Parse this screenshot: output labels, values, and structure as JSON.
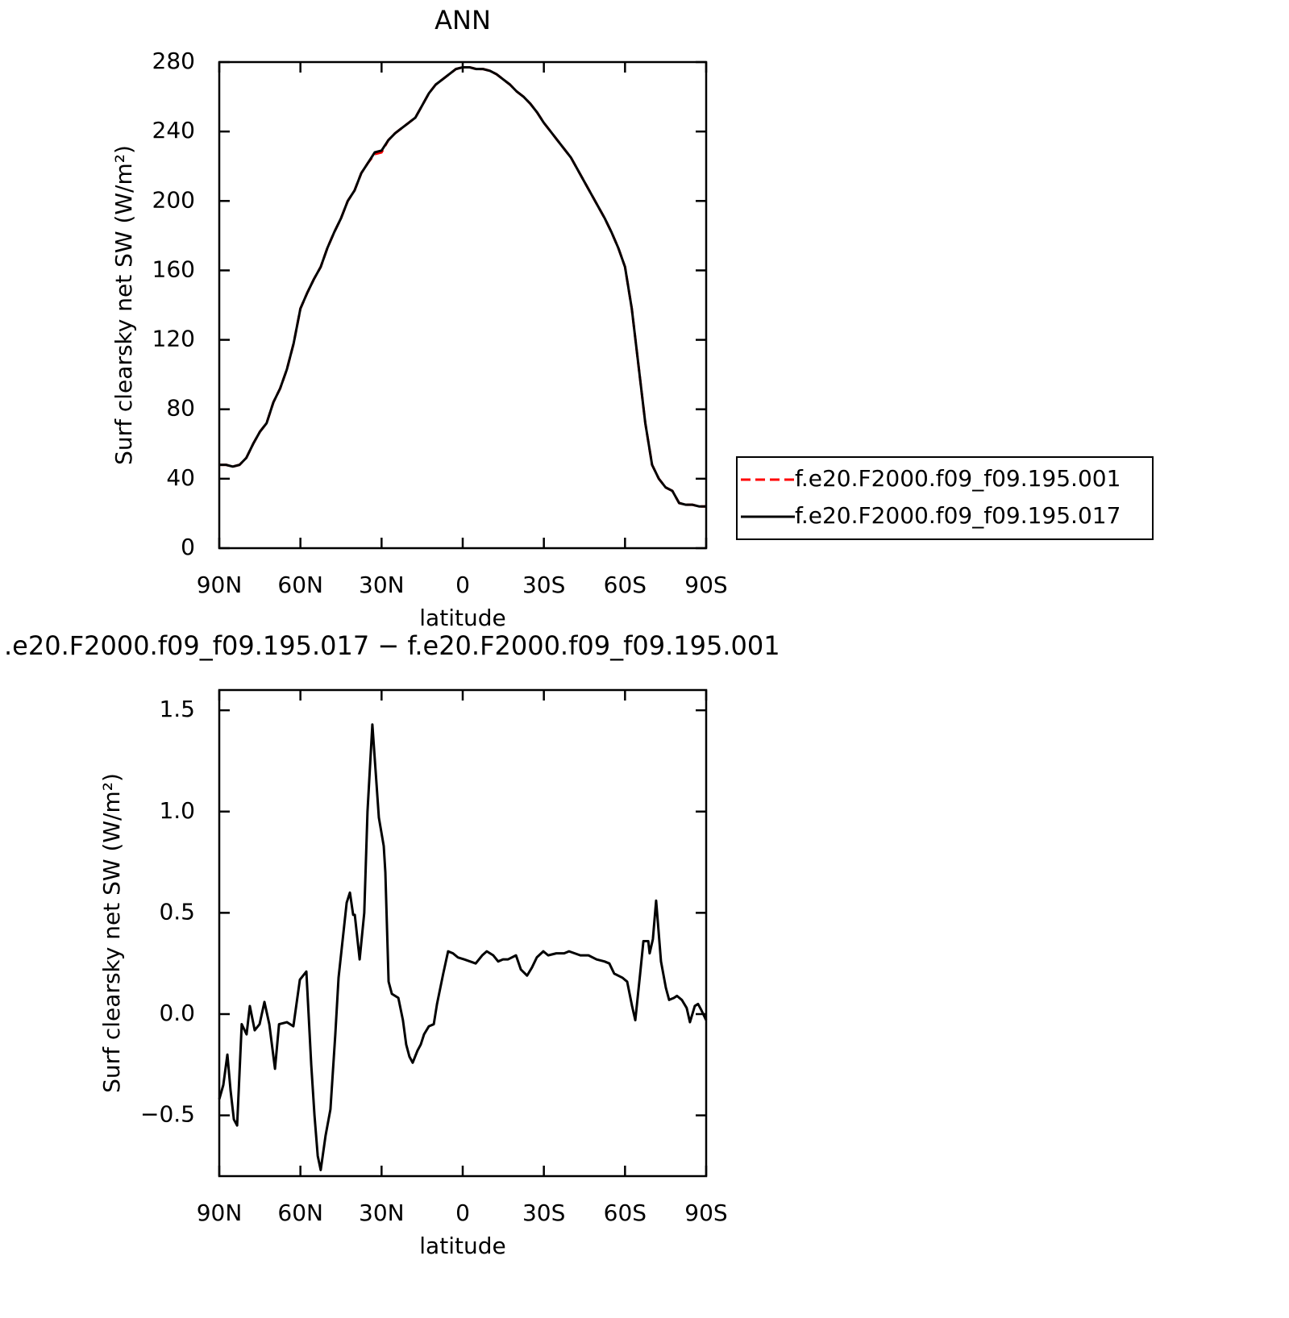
{
  "chart_data": [
    {
      "type": "line",
      "title": "ANN",
      "xlabel": "latitude",
      "ylabel": "Surf clearsky net SW (W/m²)",
      "x": [
        90,
        87.5,
        85,
        82.5,
        80,
        77.5,
        75,
        72.5,
        70,
        67.5,
        65,
        62.5,
        60,
        57.5,
        55,
        52.5,
        50,
        47.5,
        45,
        42.5,
        40,
        37.5,
        35,
        32.5,
        30,
        27.5,
        25,
        22.5,
        20,
        17.5,
        15,
        12.5,
        10,
        7.5,
        5,
        2.5,
        0,
        -2.5,
        -5,
        -7.5,
        -10,
        -12.5,
        -15,
        -17.5,
        -20,
        -22.5,
        -25,
        -27.5,
        -30,
        -32.5,
        -35,
        -37.5,
        -40,
        -42.5,
        -45,
        -47.5,
        -50,
        -52.5,
        -55,
        -57.5,
        -60,
        -62.5,
        -65,
        -67.5,
        -70,
        -72.5,
        -75,
        -77.5,
        -80,
        -82.5,
        -85,
        -87.5,
        -90
      ],
      "series": [
        {
          "name": "f.e20.F2000.f09_f09.195.001",
          "color": "#ff0000",
          "line_style": "dashed",
          "values": [
            48,
            48,
            47,
            48,
            52,
            60,
            67,
            72,
            84,
            92,
            103,
            118,
            138,
            147,
            155,
            162,
            173,
            182,
            190,
            200,
            206,
            216,
            222,
            227,
            228,
            235,
            239,
            242,
            245,
            248,
            255,
            262,
            267,
            270,
            273,
            276,
            277,
            277,
            276,
            276,
            275,
            273,
            270,
            267,
            263,
            260,
            256,
            251,
            245,
            240,
            235,
            230,
            225,
            218,
            211,
            204,
            197,
            190,
            182,
            173,
            162,
            138,
            105,
            72,
            48,
            40,
            35,
            33,
            26,
            25,
            25,
            24,
            24
          ]
        },
        {
          "name": "f.e20.F2000.f09_f09.195.017",
          "color": "#000000",
          "line_style": "solid",
          "values": [
            48,
            48,
            47,
            48,
            52,
            60,
            67,
            72,
            84,
            92,
            103,
            118,
            138,
            147,
            155,
            162,
            173,
            182,
            190,
            200,
            206,
            216,
            222,
            228,
            229,
            235,
            239,
            242,
            245,
            248,
            255,
            262,
            267,
            270,
            273,
            276,
            277,
            277,
            276,
            276,
            275,
            273,
            270,
            267,
            263,
            260,
            256,
            251,
            245,
            240,
            235,
            230,
            225,
            218,
            211,
            204,
            197,
            190,
            182,
            173,
            162,
            138,
            105,
            72,
            48,
            40,
            35,
            33,
            26,
            25,
            25,
            24,
            24
          ]
        }
      ],
      "xlim": [
        90,
        -90
      ],
      "xticks": [
        {
          "value": 90,
          "label": "90N"
        },
        {
          "value": 60,
          "label": "60N"
        },
        {
          "value": 30,
          "label": "30N"
        },
        0,
        {
          "value": -30,
          "label": "30S"
        },
        {
          "value": -60,
          "label": "60S"
        },
        {
          "value": -90,
          "label": "90S"
        }
      ],
      "ylim": [
        0,
        280
      ],
      "yticks": [
        0,
        40,
        80,
        120,
        160,
        200,
        240,
        280
      ],
      "legend": "outside-right"
    },
    {
      "type": "line",
      "title": ".e20.F2000.f09_f09.195.017 − f.e20.F2000.f09_f09.195.001",
      "xlabel": "latitude",
      "ylabel": "Surf clearsky net SW (W/m²)",
      "x": [
        90,
        88.5,
        87,
        85.8,
        84.6,
        83.4,
        81.7,
        79.9,
        78.7,
        76.9,
        75.1,
        73.3,
        71.5,
        69.4,
        67.9,
        65,
        62.6,
        60.2,
        57.8,
        56,
        54.8,
        53.6,
        52.5,
        50.7,
        48.9,
        47.1,
        45.9,
        42.9,
        41.7,
        40.5,
        39.9,
        38.1,
        36.4,
        35.2,
        33.4,
        32.2,
        31,
        29.2,
        28.6,
        27.4,
        26.2,
        23.8,
        22.1,
        20.9,
        19.7,
        18.5,
        16.7,
        15.5,
        14.3,
        12.5,
        10.7,
        9.5,
        7.2,
        5.4,
        3.6,
        1.8,
        -0.6,
        -4.8,
        -7.2,
        -8.9,
        -11.3,
        -13.1,
        -14.9,
        -16.7,
        -19.7,
        -21.5,
        -23.8,
        -25.6,
        -27.4,
        -29.8,
        -31.6,
        -34.6,
        -37.5,
        -39.3,
        -43.5,
        -46.5,
        -49.5,
        -52.4,
        -54.2,
        -56,
        -59,
        -60.8,
        -62.6,
        -63.8,
        -65.6,
        -66.8,
        -68.6,
        -69.1,
        -70.3,
        -71.5,
        -72.1,
        -73.3,
        -75.1,
        -76.3,
        -78.1,
        -79.2,
        -81,
        -82.8,
        -84,
        -85.8,
        -87,
        -88.2,
        -90
      ],
      "series": [
        {
          "color": "#000000",
          "line_style": "solid",
          "values": [
            -0.42,
            -0.35,
            -0.2,
            -0.38,
            -0.52,
            -0.55,
            -0.05,
            -0.1,
            0.04,
            -0.08,
            -0.05,
            0.06,
            -0.05,
            -0.27,
            -0.05,
            -0.04,
            -0.06,
            0.17,
            0.21,
            -0.25,
            -0.5,
            -0.7,
            -0.77,
            -0.6,
            -0.47,
            -0.1,
            0.18,
            0.55,
            0.6,
            0.49,
            0.49,
            0.27,
            0.5,
            1.0,
            1.43,
            1.2,
            0.97,
            0.83,
            0.7,
            0.16,
            0.1,
            0.08,
            -0.03,
            -0.15,
            -0.21,
            -0.24,
            -0.18,
            -0.15,
            -0.1,
            -0.06,
            -0.05,
            0.05,
            0.2,
            0.31,
            0.3,
            0.28,
            0.27,
            0.25,
            0.29,
            0.31,
            0.29,
            0.26,
            0.27,
            0.27,
            0.29,
            0.22,
            0.19,
            0.23,
            0.28,
            0.31,
            0.29,
            0.3,
            0.3,
            0.31,
            0.29,
            0.29,
            0.27,
            0.26,
            0.25,
            0.2,
            0.18,
            0.16,
            0.04,
            -0.03,
            0.2,
            0.36,
            0.36,
            0.3,
            0.37,
            0.56,
            0.46,
            0.26,
            0.13,
            0.07,
            0.08,
            0.09,
            0.07,
            0.03,
            -0.04,
            0.04,
            0.05,
            0.02,
            -0.03
          ]
        }
      ],
      "xlim": [
        90,
        -90
      ],
      "xticks": [
        {
          "value": 90,
          "label": "90N"
        },
        {
          "value": 60,
          "label": "60N"
        },
        {
          "value": 30,
          "label": "30N"
        },
        0,
        {
          "value": -30,
          "label": "30S"
        },
        {
          "value": -60,
          "label": "60S"
        },
        {
          "value": -90,
          "label": "90S"
        }
      ],
      "ylim": [
        -0.8,
        1.6
      ],
      "yticks": [
        {
          "value": -0.5,
          "label": "−0.5"
        },
        {
          "value": 0,
          "label": "0.0"
        },
        {
          "value": 0.5,
          "label": "0.5"
        },
        {
          "value": 1,
          "label": "1.0"
        },
        {
          "value": 1.5,
          "label": "1.5"
        }
      ]
    }
  ]
}
